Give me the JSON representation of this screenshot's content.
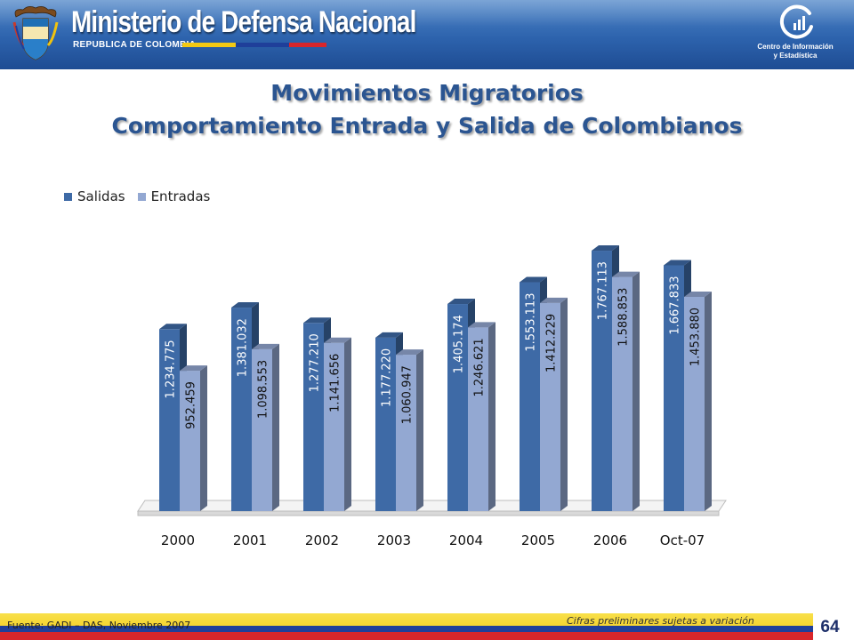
{
  "header": {
    "ministry_title": "Ministerio de Defensa Nacional",
    "republic": "REPUBLICA DE COLOMBIA",
    "center_line1": "Centro de Información",
    "center_line2": "y Estadística",
    "crest_icon": "colombia-coat-of-arms-icon",
    "logo_icon": "statistics-center-logo-icon"
  },
  "title": {
    "line1": "Movimientos Migratorios",
    "line2": "Comportamiento Entrada y Salida de Colombianos"
  },
  "chart_data": {
    "type": "bar",
    "categories": [
      "2000",
      "2001",
      "2002",
      "2003",
      "2004",
      "2005",
      "2006",
      "Oct-07"
    ],
    "series": [
      {
        "name": "Salidas",
        "color": "#3e6aa6",
        "values": [
          1234775,
          1381032,
          1277210,
          1177220,
          1405174,
          1553113,
          1767113,
          1667833
        ],
        "labels": [
          "1.234.775",
          "1.381.032",
          "1.277.210",
          "1.177.220",
          "1.405.174",
          "1.553.113",
          "1.767.113",
          "1.667.833"
        ]
      },
      {
        "name": "Entradas",
        "color": "#93a8d2",
        "values": [
          952459,
          1098553,
          1141656,
          1060947,
          1246621,
          1412229,
          1588853,
          1453880
        ],
        "labels": [
          "952.459",
          "1.098.553",
          "1.141.656",
          "1.060.947",
          "1.246.621",
          "1.412.229",
          "1.588.853",
          "1.453.880"
        ]
      }
    ],
    "legend_position": "top-left",
    "grid": false,
    "ylim": [
      0,
      1900000
    ]
  },
  "footer": {
    "source": "Fuente: GADI – DAS, Noviembre 2007",
    "preliminary": "Cifras preliminares sujetas a variación",
    "page_number": "64"
  }
}
